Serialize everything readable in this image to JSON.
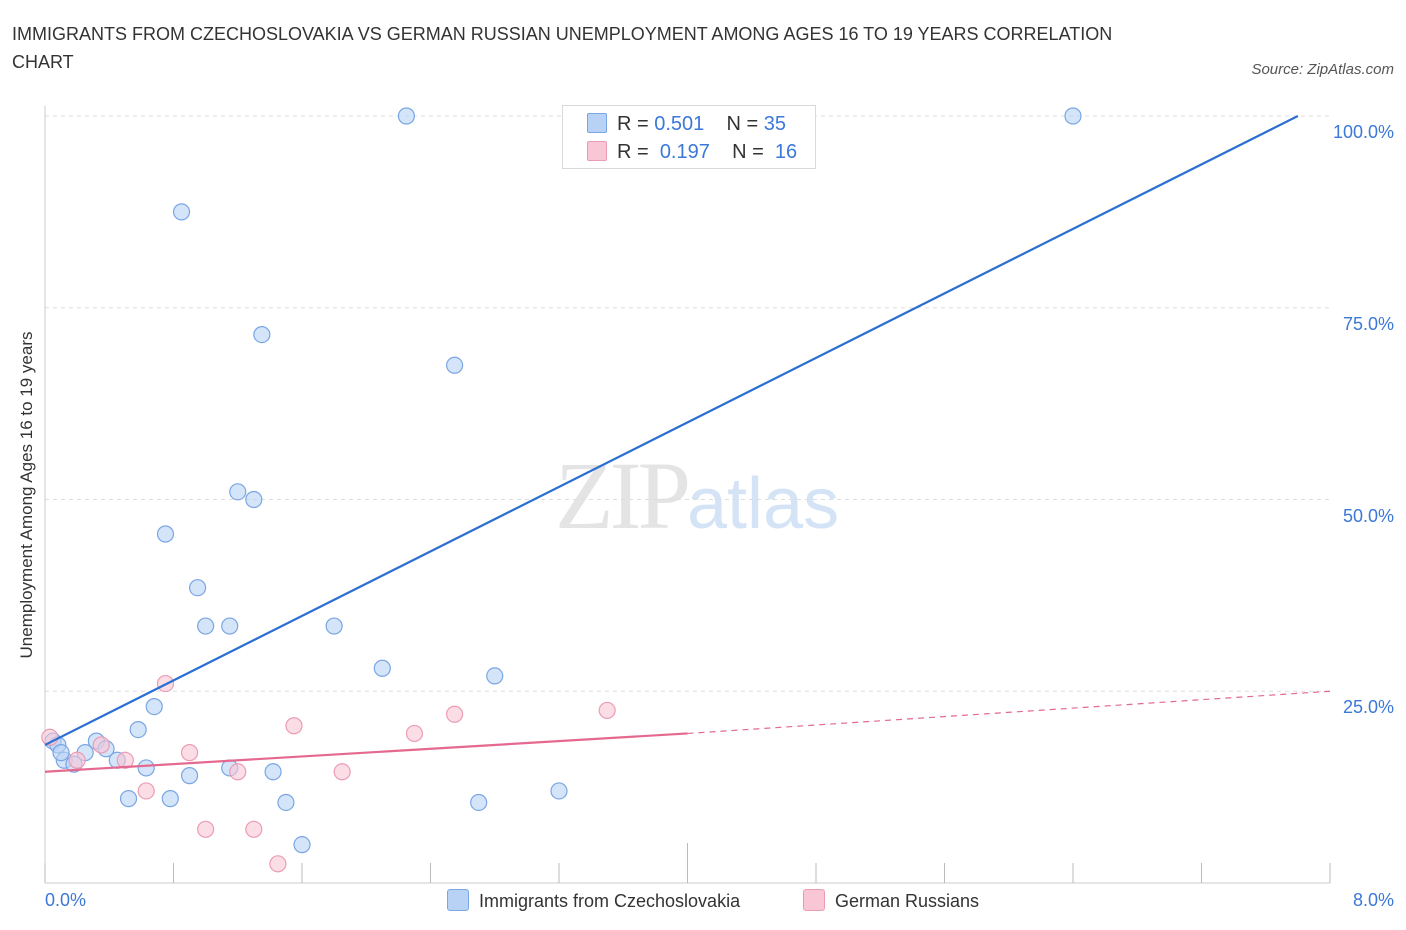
{
  "title": "IMMIGRANTS FROM CZECHOSLOVAKIA VS GERMAN RUSSIAN UNEMPLOYMENT AMONG AGES 16 TO 19 YEARS CORRELATION CHART",
  "source": "Source: ZipAtlas.com",
  "watermark": {
    "zip": "ZIP",
    "atlas": "atlas"
  },
  "legend_top": {
    "rows": [
      {
        "r_label": "R =",
        "r_value": "0.501",
        "n_label": "N =",
        "n_value": "35"
      },
      {
        "r_label": "R =",
        "r_value": "0.197",
        "n_label": "N =",
        "n_value": "16"
      }
    ]
  },
  "axis": {
    "ylabel": "Unemployment Among Ages 16 to 19 years",
    "x_min_label": "0.0%",
    "x_max_label": "8.0%",
    "y_ticks": [
      "100.0%",
      "75.0%",
      "50.0%",
      "25.0%"
    ]
  },
  "colors": {
    "blue_fill": "#b8d2f5",
    "blue_stroke": "#7aa6e3",
    "blue_line": "#2a6fd1",
    "pink_fill": "#f9c6d5",
    "pink_stroke": "#eb9cb4",
    "pink_line": "#e5688f",
    "accent_text": "#3b78d8",
    "grid": "#dddddd"
  },
  "chart_data": {
    "type": "scatter",
    "xlabel": "",
    "ylabel": "Unemployment Among Ages 16 to 19 years",
    "xlim": [
      0,
      8
    ],
    "ylim": [
      0,
      100
    ],
    "grid": true,
    "legend": "bottom-center",
    "series": [
      {
        "name": "Immigrants from Czechoslovakia",
        "r": 0.501,
        "n": 35,
        "trend": {
          "x": [
            0.0,
            7.8
          ],
          "y": [
            18.0,
            100.0
          ],
          "style": "solid"
        },
        "points": [
          [
            0.05,
            18.5
          ],
          [
            0.08,
            18.0
          ],
          [
            0.12,
            16.0
          ],
          [
            0.18,
            15.5
          ],
          [
            0.25,
            17.0
          ],
          [
            0.32,
            18.5
          ],
          [
            0.38,
            17.5
          ],
          [
            0.45,
            16.0
          ],
          [
            0.52,
            11.0
          ],
          [
            0.58,
            20.0
          ],
          [
            0.63,
            15.0
          ],
          [
            0.68,
            23.0
          ],
          [
            0.75,
            45.5
          ],
          [
            0.78,
            11.0
          ],
          [
            0.85,
            87.5
          ],
          [
            0.9,
            14.0
          ],
          [
            0.95,
            38.5
          ],
          [
            1.0,
            33.5
          ],
          [
            1.15,
            33.5
          ],
          [
            1.15,
            15.0
          ],
          [
            1.2,
            51.0
          ],
          [
            1.3,
            50.0
          ],
          [
            1.35,
            71.5
          ],
          [
            1.42,
            14.5
          ],
          [
            1.5,
            10.5
          ],
          [
            1.6,
            5.0
          ],
          [
            1.8,
            33.5
          ],
          [
            2.1,
            28.0
          ],
          [
            2.25,
            100.0
          ],
          [
            2.55,
            67.5
          ],
          [
            2.7,
            10.5
          ],
          [
            2.8,
            27.0
          ],
          [
            3.2,
            12.0
          ],
          [
            6.4,
            100.0
          ],
          [
            0.1,
            17.0
          ]
        ]
      },
      {
        "name": "German Russians",
        "r": 0.197,
        "n": 16,
        "trend": {
          "x": [
            0.0,
            4.0,
            8.0
          ],
          "y": [
            14.5,
            19.5,
            25.0
          ],
          "style": "solid-then-dashed"
        },
        "points": [
          [
            0.03,
            19.0
          ],
          [
            0.2,
            16.0
          ],
          [
            0.35,
            18.0
          ],
          [
            0.5,
            16.0
          ],
          [
            0.63,
            12.0
          ],
          [
            0.75,
            26.0
          ],
          [
            0.9,
            17.0
          ],
          [
            1.0,
            7.0
          ],
          [
            1.2,
            14.5
          ],
          [
            1.3,
            7.0
          ],
          [
            1.45,
            2.5
          ],
          [
            1.55,
            20.5
          ],
          [
            1.85,
            14.5
          ],
          [
            2.3,
            19.5
          ],
          [
            2.55,
            22.0
          ],
          [
            3.5,
            22.5
          ]
        ]
      }
    ]
  }
}
